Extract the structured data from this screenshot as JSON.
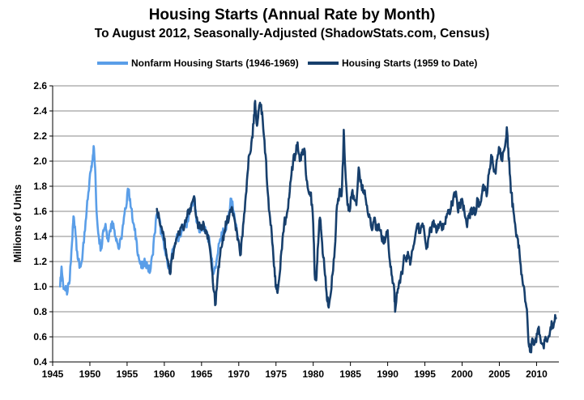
{
  "chart_data": {
    "type": "line",
    "title": "Housing Starts (Annual Rate by Month)",
    "subtitle": "To August 2012, Seasonally-Adjusted (ShadowStats.com, Census)",
    "xlabel": "",
    "ylabel": "Millions of Units",
    "xlim": [
      1945,
      2013
    ],
    "ylim": [
      0.4,
      2.6
    ],
    "x_ticks": [
      "1945",
      "1950",
      "1955",
      "1960",
      "1965",
      "1970",
      "1975",
      "1980",
      "1985",
      "1990",
      "1995",
      "2000",
      "2005",
      "2010"
    ],
    "y_ticks": [
      "0.4",
      "0.6",
      "0.8",
      "1.0",
      "1.2",
      "1.4",
      "1.6",
      "1.8",
      "2.0",
      "2.2",
      "2.4",
      "2.6"
    ],
    "grid": "horizontal",
    "legend_position": "top",
    "colors": {
      "nonfarm": "#5a9ee8",
      "total": "#173f6c"
    },
    "series": [
      {
        "name": "Nonfarm Housing Starts (1946-1969)",
        "color": "#5a9ee8",
        "points": [
          [
            1946.0,
            1.0
          ],
          [
            1946.2,
            1.16
          ],
          [
            1946.4,
            1.02
          ],
          [
            1946.7,
            0.97
          ],
          [
            1947.0,
            0.96
          ],
          [
            1947.3,
            1.05
          ],
          [
            1947.6,
            1.35
          ],
          [
            1947.8,
            1.56
          ],
          [
            1948.0,
            1.48
          ],
          [
            1948.3,
            1.28
          ],
          [
            1948.6,
            1.15
          ],
          [
            1948.9,
            1.2
          ],
          [
            1949.2,
            1.35
          ],
          [
            1949.5,
            1.55
          ],
          [
            1949.8,
            1.75
          ],
          [
            1950.1,
            1.92
          ],
          [
            1950.3,
            2.0
          ],
          [
            1950.5,
            2.12
          ],
          [
            1950.7,
            1.95
          ],
          [
            1950.9,
            1.6
          ],
          [
            1951.2,
            1.4
          ],
          [
            1951.5,
            1.3
          ],
          [
            1951.8,
            1.45
          ],
          [
            1952.1,
            1.5
          ],
          [
            1952.4,
            1.38
          ],
          [
            1952.7,
            1.45
          ],
          [
            1953.0,
            1.52
          ],
          [
            1953.3,
            1.45
          ],
          [
            1953.6,
            1.38
          ],
          [
            1953.9,
            1.3
          ],
          [
            1954.2,
            1.38
          ],
          [
            1954.5,
            1.5
          ],
          [
            1954.8,
            1.62
          ],
          [
            1955.1,
            1.78
          ],
          [
            1955.4,
            1.7
          ],
          [
            1955.7,
            1.55
          ],
          [
            1956.0,
            1.45
          ],
          [
            1956.3,
            1.35
          ],
          [
            1956.6,
            1.22
          ],
          [
            1956.9,
            1.15
          ],
          [
            1957.2,
            1.17
          ],
          [
            1957.5,
            1.2
          ],
          [
            1957.8,
            1.15
          ],
          [
            1958.1,
            1.12
          ],
          [
            1958.4,
            1.25
          ],
          [
            1958.7,
            1.42
          ],
          [
            1959.0,
            1.58
          ],
          [
            1959.3,
            1.55
          ],
          [
            1959.6,
            1.42
          ],
          [
            1960.0,
            1.3
          ],
          [
            1960.4,
            1.2
          ],
          [
            1960.8,
            1.15
          ],
          [
            1961.2,
            1.3
          ],
          [
            1961.6,
            1.38
          ],
          [
            1962.0,
            1.4
          ],
          [
            1962.4,
            1.45
          ],
          [
            1962.8,
            1.5
          ],
          [
            1963.2,
            1.52
          ],
          [
            1963.6,
            1.62
          ],
          [
            1964.0,
            1.72
          ],
          [
            1964.3,
            1.52
          ],
          [
            1964.6,
            1.48
          ],
          [
            1965.0,
            1.45
          ],
          [
            1965.4,
            1.48
          ],
          [
            1965.8,
            1.42
          ],
          [
            1966.2,
            1.3
          ],
          [
            1966.6,
            1.1
          ],
          [
            1967.0,
            1.2
          ],
          [
            1967.4,
            1.35
          ],
          [
            1967.8,
            1.42
          ],
          [
            1968.2,
            1.45
          ],
          [
            1968.6,
            1.55
          ],
          [
            1969.0,
            1.7
          ],
          [
            1969.3,
            1.6
          ],
          [
            1969.6,
            1.5
          ],
          [
            1969.9,
            1.38
          ]
        ]
      },
      {
        "name": "Housing Starts (1959 to Date)",
        "color": "#173f6c",
        "points": [
          [
            1959.0,
            1.62
          ],
          [
            1959.3,
            1.55
          ],
          [
            1959.6,
            1.48
          ],
          [
            1959.9,
            1.42
          ],
          [
            1960.2,
            1.3
          ],
          [
            1960.5,
            1.2
          ],
          [
            1960.8,
            1.1
          ],
          [
            1961.0,
            1.22
          ],
          [
            1961.3,
            1.3
          ],
          [
            1961.6,
            1.38
          ],
          [
            1962.0,
            1.42
          ],
          [
            1962.3,
            1.48
          ],
          [
            1962.6,
            1.45
          ],
          [
            1963.0,
            1.55
          ],
          [
            1963.3,
            1.6
          ],
          [
            1963.6,
            1.65
          ],
          [
            1964.0,
            1.72
          ],
          [
            1964.3,
            1.55
          ],
          [
            1964.6,
            1.48
          ],
          [
            1965.0,
            1.45
          ],
          [
            1965.3,
            1.5
          ],
          [
            1965.6,
            1.45
          ],
          [
            1966.0,
            1.35
          ],
          [
            1966.3,
            1.2
          ],
          [
            1966.6,
            0.98
          ],
          [
            1966.9,
            0.86
          ],
          [
            1967.2,
            1.1
          ],
          [
            1967.5,
            1.25
          ],
          [
            1967.8,
            1.35
          ],
          [
            1968.1,
            1.45
          ],
          [
            1968.4,
            1.52
          ],
          [
            1968.7,
            1.55
          ],
          [
            1969.0,
            1.62
          ],
          [
            1969.3,
            1.58
          ],
          [
            1969.6,
            1.45
          ],
          [
            1969.9,
            1.38
          ],
          [
            1970.2,
            1.25
          ],
          [
            1970.5,
            1.4
          ],
          [
            1970.8,
            1.6
          ],
          [
            1971.1,
            1.85
          ],
          [
            1971.4,
            2.05
          ],
          [
            1971.7,
            2.15
          ],
          [
            1972.0,
            2.3
          ],
          [
            1972.2,
            2.48
          ],
          [
            1972.4,
            2.3
          ],
          [
            1972.6,
            2.35
          ],
          [
            1972.8,
            2.45
          ],
          [
            1973.0,
            2.45
          ],
          [
            1973.3,
            2.25
          ],
          [
            1973.6,
            2.05
          ],
          [
            1973.9,
            1.75
          ],
          [
            1974.2,
            1.55
          ],
          [
            1974.5,
            1.35
          ],
          [
            1974.8,
            1.15
          ],
          [
            1975.0,
            1.0
          ],
          [
            1975.2,
            0.95
          ],
          [
            1975.5,
            1.1
          ],
          [
            1975.8,
            1.3
          ],
          [
            1976.1,
            1.5
          ],
          [
            1976.4,
            1.55
          ],
          [
            1976.7,
            1.7
          ],
          [
            1977.0,
            1.85
          ],
          [
            1977.3,
            2.0
          ],
          [
            1977.6,
            2.05
          ],
          [
            1977.9,
            2.15
          ],
          [
            1978.2,
            2.0
          ],
          [
            1978.5,
            2.05
          ],
          [
            1978.8,
            2.1
          ],
          [
            1979.1,
            1.85
          ],
          [
            1979.4,
            1.75
          ],
          [
            1979.7,
            1.75
          ],
          [
            1980.0,
            1.5
          ],
          [
            1980.2,
            1.1
          ],
          [
            1980.4,
            1.05
          ],
          [
            1980.6,
            1.3
          ],
          [
            1980.9,
            1.55
          ],
          [
            1981.2,
            1.35
          ],
          [
            1981.5,
            1.15
          ],
          [
            1981.8,
            0.95
          ],
          [
            1982.0,
            0.85
          ],
          [
            1982.3,
            0.92
          ],
          [
            1982.6,
            1.1
          ],
          [
            1982.9,
            1.3
          ],
          [
            1983.2,
            1.65
          ],
          [
            1983.5,
            1.75
          ],
          [
            1983.8,
            1.72
          ],
          [
            1984.0,
            2.0
          ],
          [
            1984.1,
            2.25
          ],
          [
            1984.3,
            1.95
          ],
          [
            1984.6,
            1.65
          ],
          [
            1984.9,
            1.6
          ],
          [
            1985.2,
            1.75
          ],
          [
            1985.5,
            1.7
          ],
          [
            1985.8,
            1.65
          ],
          [
            1986.1,
            1.95
          ],
          [
            1986.4,
            1.85
          ],
          [
            1986.7,
            1.75
          ],
          [
            1987.0,
            1.72
          ],
          [
            1987.3,
            1.6
          ],
          [
            1987.6,
            1.55
          ],
          [
            1987.9,
            1.45
          ],
          [
            1988.2,
            1.55
          ],
          [
            1988.5,
            1.45
          ],
          [
            1988.8,
            1.5
          ],
          [
            1989.1,
            1.45
          ],
          [
            1989.4,
            1.35
          ],
          [
            1989.7,
            1.38
          ],
          [
            1990.0,
            1.45
          ],
          [
            1990.3,
            1.2
          ],
          [
            1990.6,
            1.08
          ],
          [
            1990.9,
            0.96
          ],
          [
            1991.0,
            0.8
          ],
          [
            1991.3,
            0.95
          ],
          [
            1991.6,
            1.05
          ],
          [
            1991.9,
            1.1
          ],
          [
            1992.2,
            1.25
          ],
          [
            1992.5,
            1.2
          ],
          [
            1992.8,
            1.25
          ],
          [
            1993.1,
            1.2
          ],
          [
            1993.4,
            1.3
          ],
          [
            1993.7,
            1.4
          ],
          [
            1994.0,
            1.5
          ],
          [
            1994.3,
            1.45
          ],
          [
            1994.6,
            1.48
          ],
          [
            1994.9,
            1.45
          ],
          [
            1995.2,
            1.3
          ],
          [
            1995.5,
            1.4
          ],
          [
            1995.8,
            1.45
          ],
          [
            1996.1,
            1.5
          ],
          [
            1996.4,
            1.48
          ],
          [
            1996.7,
            1.45
          ],
          [
            1997.0,
            1.5
          ],
          [
            1997.3,
            1.45
          ],
          [
            1997.6,
            1.5
          ],
          [
            1997.9,
            1.55
          ],
          [
            1998.2,
            1.6
          ],
          [
            1998.5,
            1.62
          ],
          [
            1998.8,
            1.7
          ],
          [
            1999.1,
            1.75
          ],
          [
            1999.4,
            1.62
          ],
          [
            1999.7,
            1.65
          ],
          [
            2000.0,
            1.7
          ],
          [
            2000.3,
            1.6
          ],
          [
            2000.6,
            1.5
          ],
          [
            2000.9,
            1.55
          ],
          [
            2001.2,
            1.62
          ],
          [
            2001.5,
            1.6
          ],
          [
            2001.8,
            1.58
          ],
          [
            2002.1,
            1.7
          ],
          [
            2002.4,
            1.65
          ],
          [
            2002.7,
            1.75
          ],
          [
            2003.0,
            1.8
          ],
          [
            2003.3,
            1.72
          ],
          [
            2003.6,
            1.9
          ],
          [
            2003.9,
            2.05
          ],
          [
            2004.2,
            1.95
          ],
          [
            2004.5,
            1.9
          ],
          [
            2004.8,
            2.05
          ],
          [
            2005.1,
            2.1
          ],
          [
            2005.4,
            2.0
          ],
          [
            2005.7,
            2.1
          ],
          [
            2006.0,
            2.27
          ],
          [
            2006.2,
            2.1
          ],
          [
            2006.4,
            1.9
          ],
          [
            2006.6,
            1.75
          ],
          [
            2006.9,
            1.6
          ],
          [
            2007.2,
            1.45
          ],
          [
            2007.5,
            1.38
          ],
          [
            2007.8,
            1.2
          ],
          [
            2008.1,
            1.05
          ],
          [
            2008.4,
            0.95
          ],
          [
            2008.7,
            0.82
          ],
          [
            2009.0,
            0.52
          ],
          [
            2009.2,
            0.49
          ],
          [
            2009.5,
            0.58
          ],
          [
            2009.8,
            0.57
          ],
          [
            2010.1,
            0.62
          ],
          [
            2010.3,
            0.68
          ],
          [
            2010.6,
            0.55
          ],
          [
            2010.9,
            0.53
          ],
          [
            2011.2,
            0.6
          ],
          [
            2011.5,
            0.58
          ],
          [
            2011.8,
            0.64
          ],
          [
            2012.1,
            0.7
          ],
          [
            2012.4,
            0.72
          ],
          [
            2012.6,
            0.75
          ]
        ]
      }
    ]
  }
}
